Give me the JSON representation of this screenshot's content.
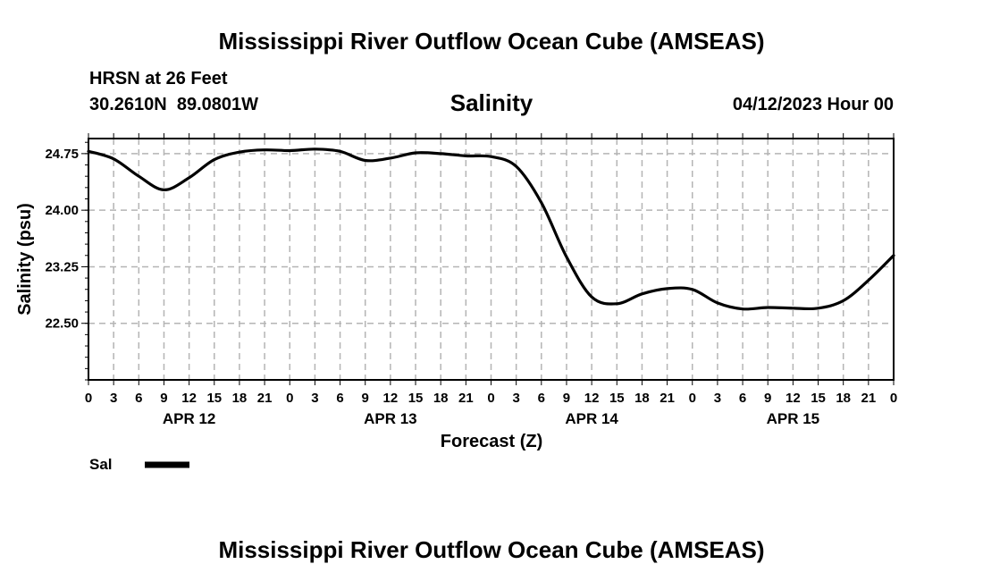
{
  "page": {
    "title_top": "Mississippi River Outflow Ocean Cube (AMSEAS)",
    "title_bottom": "Mississippi River Outflow Ocean Cube (AMSEAS)",
    "station_line1": "HRSN at 26 Feet",
    "station_line2": "30.2610N  89.0801W",
    "datetime": "04/12/2023 Hour 00"
  },
  "chart_data": {
    "type": "line",
    "title": "Salinity",
    "xlabel": "Forecast (Z)",
    "ylabel": "Salinity (psu)",
    "xlim": [
      0,
      96
    ],
    "ylim": [
      21.75,
      24.95
    ],
    "grid": true,
    "legend_position": "bottom-left",
    "y_ticks": [
      22.5,
      23.25,
      24.0,
      24.75
    ],
    "y_tick_labels": [
      "22.50",
      "23.25",
      "24.00",
      "24.75"
    ],
    "x_ticks": [
      0,
      3,
      6,
      9,
      12,
      15,
      18,
      21,
      24,
      27,
      30,
      33,
      36,
      39,
      42,
      45,
      48,
      51,
      54,
      57,
      60,
      63,
      66,
      69,
      72,
      75,
      78,
      81,
      84,
      87,
      90,
      93,
      96
    ],
    "x_tick_labels": [
      "0",
      "3",
      "6",
      "9",
      "12",
      "15",
      "18",
      "21",
      "0",
      "3",
      "6",
      "9",
      "12",
      "15",
      "18",
      "21",
      "0",
      "3",
      "6",
      "9",
      "12",
      "15",
      "18",
      "21",
      "0",
      "3",
      "6",
      "9",
      "12",
      "15",
      "18",
      "21",
      "0"
    ],
    "day_labels": [
      {
        "x": 12,
        "label": "APR 12"
      },
      {
        "x": 36,
        "label": "APR 13"
      },
      {
        "x": 60,
        "label": "APR 14"
      },
      {
        "x": 84,
        "label": "APR 15"
      }
    ],
    "series": [
      {
        "name": "Sal",
        "x": [
          0,
          3,
          6,
          9,
          12,
          15,
          18,
          21,
          24,
          27,
          30,
          33,
          36,
          39,
          42,
          45,
          48,
          51,
          54,
          57,
          60,
          63,
          66,
          69,
          72,
          75,
          78,
          81,
          84,
          87,
          90,
          93,
          96
        ],
        "values": [
          24.78,
          24.68,
          24.45,
          24.27,
          24.43,
          24.67,
          24.77,
          24.8,
          24.79,
          24.81,
          24.78,
          24.66,
          24.69,
          24.76,
          24.75,
          24.72,
          24.71,
          24.58,
          24.1,
          23.38,
          22.85,
          22.76,
          22.89,
          22.96,
          22.95,
          22.77,
          22.69,
          22.71,
          22.7,
          22.7,
          22.8,
          23.07,
          23.4
        ]
      }
    ]
  }
}
